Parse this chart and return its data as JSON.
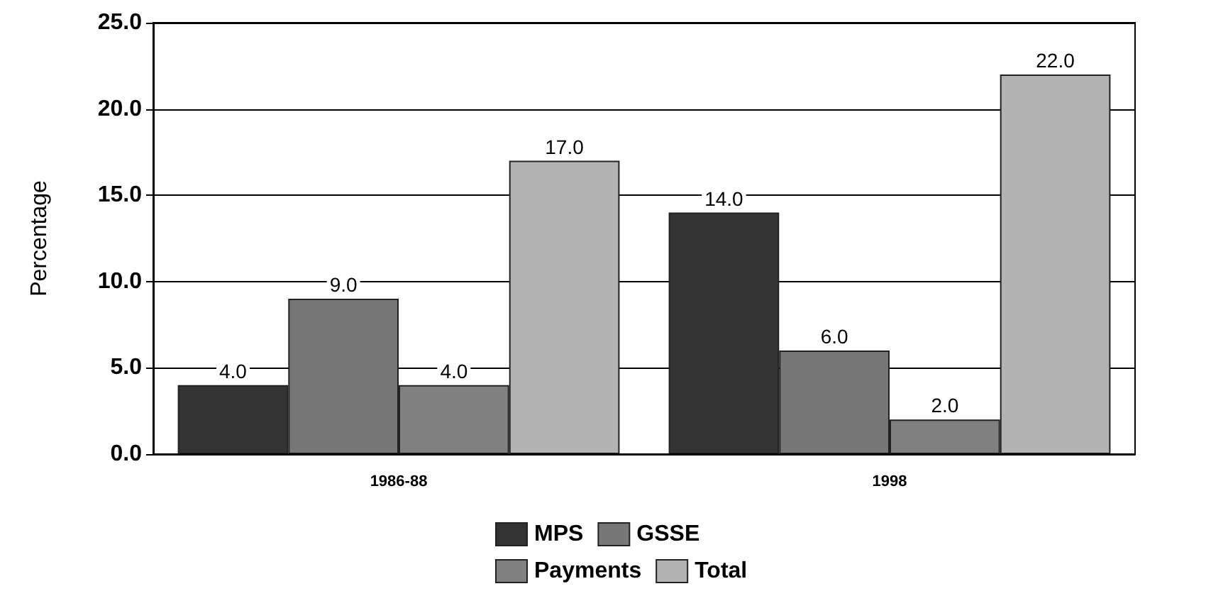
{
  "chart_data": {
    "type": "bar",
    "ylabel": "Percentage",
    "categories": [
      "1986-88",
      "1998"
    ],
    "series": [
      {
        "name": "MPS",
        "color": "#333333",
        "values": [
          4,
          14
        ],
        "value_labels": [
          "4.0",
          "14.0"
        ]
      },
      {
        "name": "GSSE",
        "color": "#777777",
        "values": [
          9,
          6
        ],
        "value_labels": [
          "9.0",
          "6.0"
        ]
      },
      {
        "name": "Payments",
        "color": "#808080",
        "values": [
          4,
          2
        ],
        "value_labels": [
          "4.0",
          "2.0"
        ]
      },
      {
        "name": "Total",
        "color": "#b3b3b3",
        "values": [
          17,
          22
        ],
        "value_labels": [
          "17.0",
          "22.0"
        ]
      }
    ],
    "ylim": [
      0,
      25
    ],
    "yticks": [
      {
        "value": 0,
        "label": "0.0"
      },
      {
        "value": 5,
        "label": "5.0"
      },
      {
        "value": 10,
        "label": "10.0"
      },
      {
        "value": 15,
        "label": "15.0"
      },
      {
        "value": 20,
        "label": "20.0"
      },
      {
        "value": 25,
        "label": "25.0"
      }
    ],
    "grid": "y",
    "legend": "bottom"
  }
}
